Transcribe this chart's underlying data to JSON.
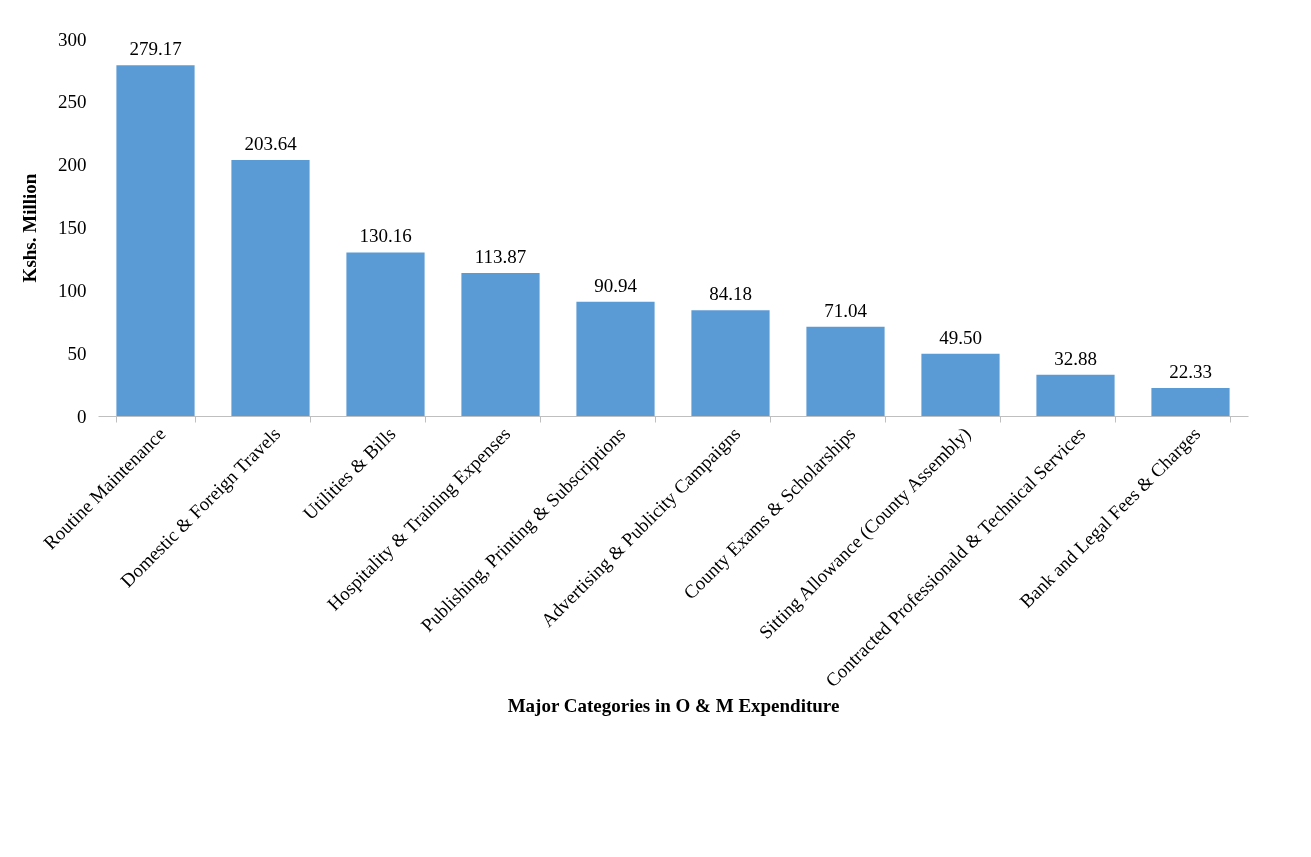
{
  "chart_data": {
    "type": "bar",
    "xlabel": "Major Categories in O & M Expenditure",
    "ylabel": "Kshs. Million",
    "categories": [
      "Routine Maintenance",
      "Domestic & Foreign Travels",
      "Utilities & Bills",
      "Hospitality & Training Expenses",
      "Publishing, Printing & Subscriptions",
      "Advertising & Publicity Campaigns",
      "County Exams & Scholarships",
      "Sitting Allowance (County Assembly)",
      "Contracted Professionald & Technical Services",
      "Bank and Legal Fees & Charges"
    ],
    "values": [
      279.17,
      203.64,
      130.16,
      113.87,
      90.94,
      84.18,
      71.04,
      49.5,
      32.88,
      22.33
    ],
    "value_labels": [
      "279.17",
      "203.64",
      "130.16",
      "113.87",
      "90.94",
      "84.18",
      "71.04",
      "49.50",
      "32.88",
      "22.33"
    ],
    "color": "#5b9bd5",
    "ylim": [
      0,
      300
    ],
    "yticks": [
      0,
      50,
      100,
      150,
      200,
      250,
      300
    ],
    "grid": false
  }
}
